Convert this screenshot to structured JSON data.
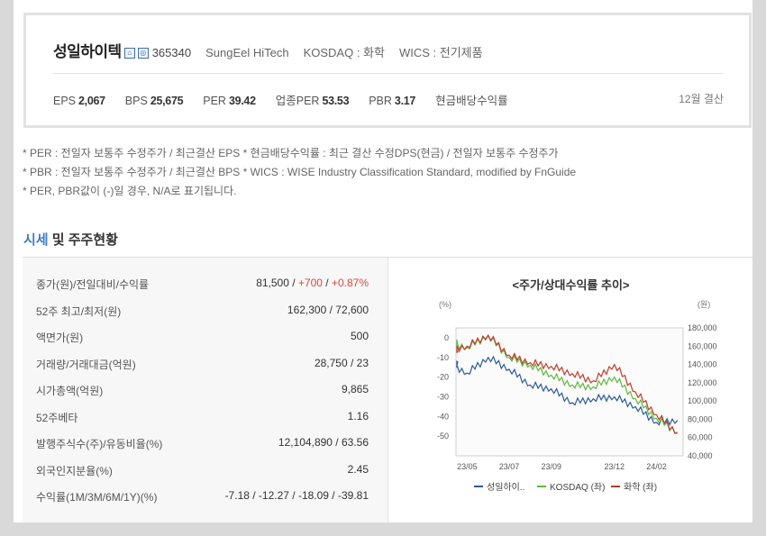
{
  "header": {
    "company_name": "성일하이텍",
    "badge1": "유",
    "badge2": "코",
    "code": "365340",
    "eng_name": "SungEel HiTech",
    "market": "KOSDAQ : 화학",
    "wics": "WICS : 전기제품",
    "metrics": [
      {
        "label": "EPS",
        "value": "2,067"
      },
      {
        "label": "BPS",
        "value": "25,675"
      },
      {
        "label": "PER",
        "value": "39.42"
      },
      {
        "label": "업종PER",
        "value": "53.53"
      },
      {
        "label": "PBR",
        "value": "3.17"
      },
      {
        "label": "현금배당수익률",
        "value": ""
      }
    ],
    "settle": "12월 결산"
  },
  "notes": [
    "* PER : 전일자 보통주 수정주가 / 최근결산 EPS * 현금배당수익률 : 최근 결산 수정DPS(현금) / 전일자 보통주 수정주가",
    "* PBR : 전일자 보통주 수정주가 / 최근결산 BPS * WICS : WISE Industry Classification Standard, modified by FnGuide",
    "* PER, PBR값이 (-)일 경우, N/A로 표기됩니다."
  ],
  "section": {
    "title_accent": "시세",
    "title_rest": " 및 주주현황"
  },
  "table": {
    "rows": [
      {
        "label": "종가(원)/전일대비/수익률",
        "v1": "81,500",
        "sep1": " / ",
        "v2": "+700",
        "sep2": " / ",
        "v3": "+0.87%"
      },
      {
        "label": "52주 최고/최저(원)",
        "value": "162,300 / 72,600"
      },
      {
        "label": "액면가(원)",
        "value": "500"
      },
      {
        "label": "거래량/거래대금(억원)",
        "value": "28,750 / 23"
      },
      {
        "label": "시가총액(억원)",
        "value": "9,865"
      },
      {
        "label": "52주베타",
        "value": "1.16"
      },
      {
        "label": "발행주식수(주)/유동비율(%)",
        "value": "12,104,890 / 63.56"
      },
      {
        "label": "외국인지분율(%)",
        "value": "2.45"
      },
      {
        "label": "수익률(1M/3M/6M/1Y)(%)",
        "value": "-7.18 / -12.27 / -18.09 / -39.81"
      }
    ]
  },
  "chart_data": {
    "type": "line",
    "title": "<주가/상대수익률 추이>",
    "left_unit": "(%)",
    "right_unit": "(원)",
    "x_ticks": [
      "23/05",
      "23/07",
      "23/09",
      "23/12",
      "24/02"
    ],
    "left_axis": {
      "ticks": [
        0,
        -10,
        -20,
        -30,
        -40,
        -50
      ],
      "range": [
        -60,
        5
      ]
    },
    "right_axis": {
      "ticks": [
        "180,000",
        "160,000",
        "140,000",
        "120,000",
        "100,000",
        "80,000",
        "60,000",
        "40,000"
      ],
      "range": [
        40000,
        180000
      ]
    },
    "series": [
      {
        "name": "성일하이..",
        "axis": "left",
        "color": "#2c5a9e",
        "x": [
          "23/04",
          "23/05",
          "23/06",
          "23/07",
          "23/08",
          "23/09",
          "23/10",
          "23/11",
          "23/12",
          "24/01",
          "24/02",
          "24/03"
        ],
        "values": [
          -12,
          -18,
          -10,
          -16,
          -24,
          -26,
          -33,
          -31,
          -30,
          -35,
          -43,
          -42
        ]
      },
      {
        "name": "KOSDAQ (좌)",
        "axis": "left",
        "color": "#5db83a",
        "x": [
          "23/04",
          "23/05",
          "23/06",
          "23/07",
          "23/08",
          "23/09",
          "23/10",
          "23/11",
          "23/12",
          "24/01",
          "24/02",
          "24/03"
        ],
        "values": [
          -2,
          -5,
          1,
          -10,
          -14,
          -19,
          -24,
          -25,
          -20,
          -31,
          -41,
          -48
        ]
      },
      {
        "name": "화학 (좌)",
        "axis": "right",
        "color": "#c23a2b",
        "x": [
          "23/04",
          "23/05",
          "23/06",
          "23/07",
          "23/08",
          "23/09",
          "23/10",
          "23/11",
          "23/12",
          "24/01",
          "24/02",
          "24/03"
        ],
        "values": [
          155000,
          160000,
          172000,
          150000,
          142000,
          138000,
          130000,
          122000,
          140000,
          110000,
          85000,
          65000
        ]
      }
    ]
  }
}
